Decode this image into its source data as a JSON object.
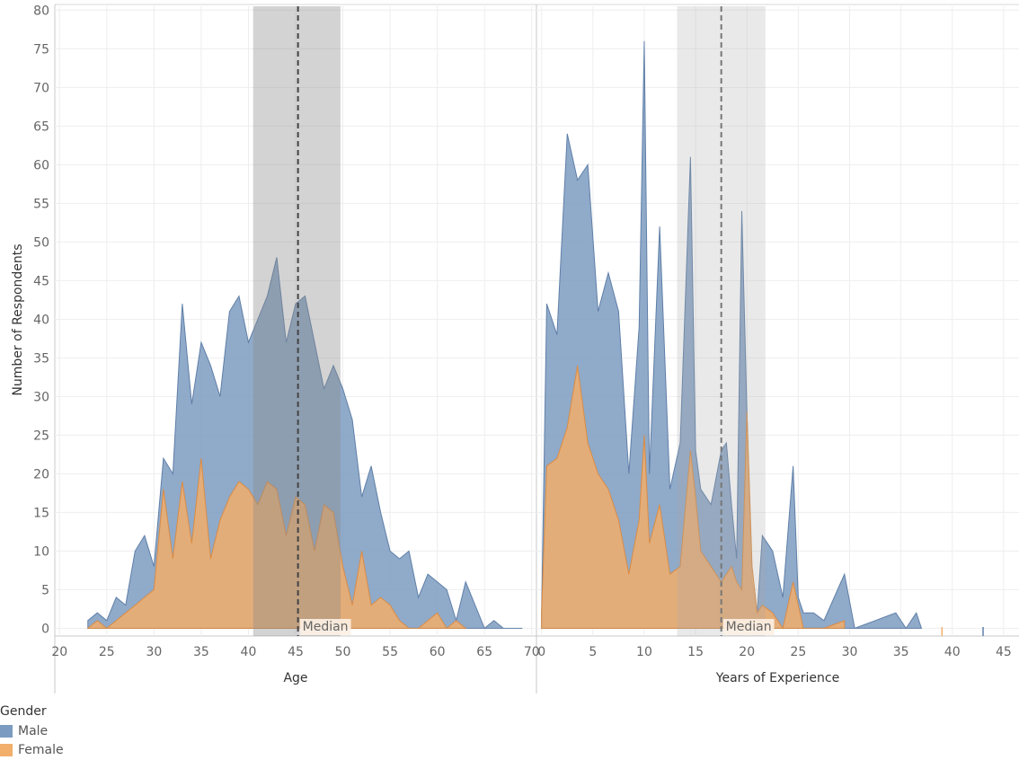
{
  "chart_data": [
    {
      "type": "area",
      "xlabel": "Age",
      "ylabel": "Number of Respondents",
      "xlim": [
        19.5,
        70.5
      ],
      "ylim": [
        -1,
        80.5
      ],
      "xticks": [
        20,
        25,
        30,
        35,
        40,
        45,
        50,
        55,
        60,
        65,
        70
      ],
      "yticks": [
        0,
        5,
        10,
        15,
        20,
        25,
        30,
        35,
        40,
        45,
        50,
        55,
        60,
        65,
        70,
        75,
        80
      ],
      "grid": true,
      "reference_band": [
        40.5,
        49.75
      ],
      "median": {
        "value": 45.25,
        "label": "Median"
      },
      "series": [
        {
          "name": "Male",
          "x": [
            23,
            24,
            25,
            26,
            27,
            28,
            29,
            30,
            31,
            32,
            33,
            34,
            35,
            36,
            37,
            38,
            39,
            40,
            41,
            42,
            43,
            44,
            45,
            46,
            47,
            48,
            49,
            50,
            51,
            52,
            53,
            54,
            55,
            56,
            57,
            58,
            59,
            60,
            61,
            62,
            63,
            64,
            65,
            66,
            67,
            68,
            69
          ],
          "values": [
            1,
            2,
            1,
            4,
            3,
            10,
            12,
            8,
            22,
            20,
            42,
            29,
            37,
            34,
            30,
            41,
            43,
            37,
            40,
            43,
            48,
            37,
            42,
            43,
            37,
            31,
            34,
            31,
            27,
            17,
            21,
            15,
            10,
            9,
            10,
            4,
            7,
            6,
            5,
            1,
            6,
            3,
            0,
            1,
            0,
            0,
            0
          ]
        },
        {
          "name": "Female",
          "x": [
            23,
            24,
            25,
            26,
            27,
            28,
            29,
            30,
            31,
            32,
            33,
            34,
            35,
            36,
            37,
            38,
            39,
            40,
            41,
            42,
            43,
            44,
            45,
            46,
            47,
            48,
            49,
            50,
            51,
            52,
            53,
            54,
            55,
            56,
            57,
            58,
            59,
            60,
            61,
            62,
            63
          ],
          "values": [
            0,
            1,
            0,
            1,
            2,
            3,
            4,
            5,
            18,
            9,
            19,
            11,
            22,
            9,
            14,
            17,
            19,
            18,
            16,
            19,
            18,
            12,
            17,
            16,
            10,
            16,
            15,
            8,
            3,
            10,
            3,
            4,
            3,
            1,
            0,
            0,
            1,
            2,
            0,
            1,
            0
          ]
        }
      ]
    },
    {
      "type": "area",
      "xlabel": "Years of Experience",
      "xlim": [
        -0.5,
        46.5
      ],
      "ylim": [
        -1,
        80.5
      ],
      "xticks": [
        0,
        5,
        10,
        15,
        20,
        25,
        30,
        35,
        40,
        45
      ],
      "grid": true,
      "reference_band": [
        13.2,
        21.8
      ],
      "median": {
        "value": 17.5,
        "label": "Median"
      },
      "series": [
        {
          "name": "Male",
          "x": [
            0,
            0.5,
            1.5,
            2.5,
            3.5,
            4.5,
            5.5,
            6.5,
            7.5,
            8.5,
            9.5,
            10,
            10.5,
            11.5,
            12.5,
            13.5,
            14.5,
            15,
            15.5,
            16.5,
            17.5,
            18,
            18.5,
            19,
            19.5,
            20,
            20.5,
            21,
            21.5,
            22.5,
            23.5,
            24.5,
            25,
            25.5,
            26.5,
            27.5,
            28.5,
            29.5,
            30.5,
            31.5,
            32.5,
            33.5,
            34.5,
            35.5,
            36.5,
            37
          ],
          "values": [
            2,
            42,
            38,
            64,
            58,
            60,
            41,
            46,
            41,
            20,
            39,
            76,
            20,
            52,
            18,
            24,
            61,
            23,
            18,
            16,
            23,
            24,
            16,
            9,
            54,
            28,
            6,
            2,
            12,
            10,
            4,
            21,
            4,
            2,
            2,
            1,
            4,
            7,
            0,
            0.5,
            1,
            1.5,
            2,
            0,
            2,
            0
          ]
        },
        {
          "name": "Female",
          "x": [
            0,
            0.5,
            1.5,
            2.5,
            3.5,
            4.5,
            5.5,
            6.5,
            7.5,
            8.5,
            9.5,
            10,
            10.5,
            11.5,
            12.5,
            13.5,
            14.5,
            15,
            15.5,
            16.5,
            17.5,
            18,
            18.5,
            19,
            19.5,
            20,
            20.5,
            21,
            21.5,
            22.5,
            23.5,
            24.5,
            25,
            25.5,
            26.5,
            27.5,
            28.5,
            29.5
          ],
          "values": [
            2,
            21,
            22,
            26,
            34,
            24,
            20,
            18,
            14,
            7,
            14,
            25,
            11,
            16,
            7,
            8,
            23,
            17,
            10,
            8,
            6,
            7,
            8,
            6,
            5,
            28,
            8,
            2,
            3,
            2,
            0,
            6,
            3,
            0,
            0,
            0,
            0.5,
            1
          ]
        }
      ]
    }
  ],
  "legend": {
    "title": "Gender",
    "items": [
      {
        "label": "Male",
        "color": "#7c9bc0"
      },
      {
        "label": "Female",
        "color": "#f2ae6b"
      }
    ]
  }
}
